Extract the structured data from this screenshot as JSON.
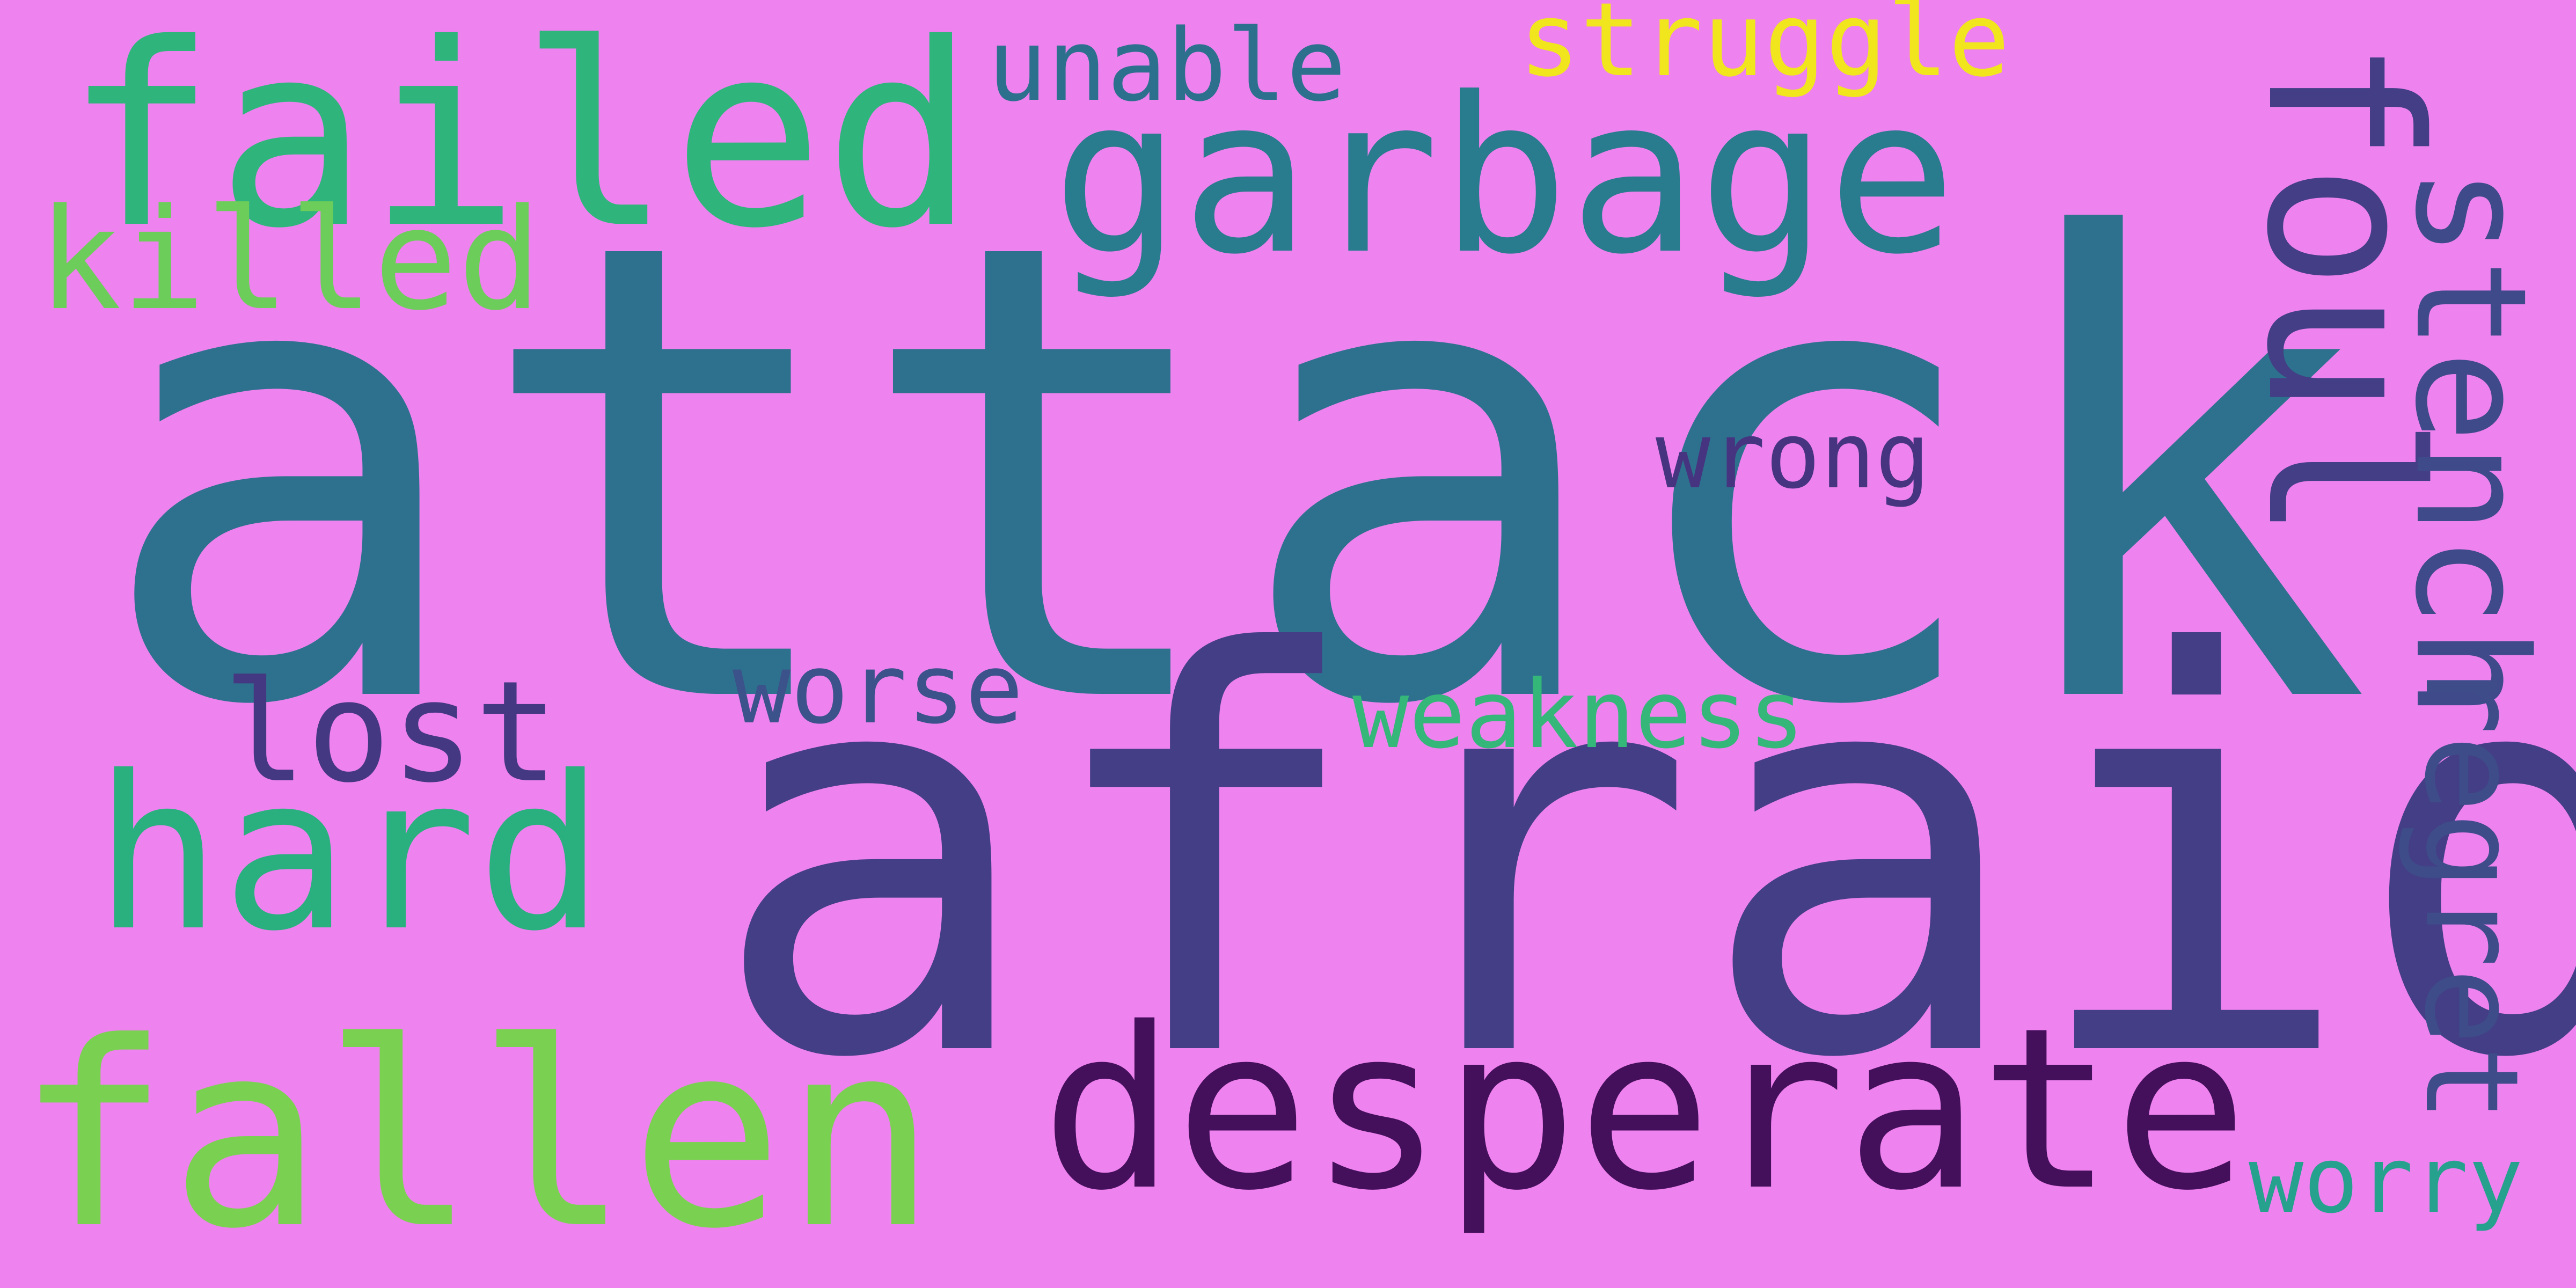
{
  "background_color": "#ee82ee",
  "words": {
    "attack": {
      "text": "attack",
      "color": "#2e718e"
    },
    "afraid": {
      "text": "afraid",
      "color": "#433e85"
    },
    "garbage": {
      "text": "garbage",
      "color": "#297b8e"
    },
    "failed": {
      "text": "failed",
      "color": "#2fb47c"
    },
    "fallen": {
      "text": "fallen",
      "color": "#7ad151"
    },
    "desperate": {
      "text": "desperate",
      "color": "#440f5b"
    },
    "hard": {
      "text": "hard",
      "color": "#2ab07f"
    },
    "killed": {
      "text": "killed",
      "color": "#6ccd5a"
    },
    "lost": {
      "text": "lost",
      "color": "#453882"
    },
    "worse": {
      "text": "worse",
      "color": "#3b528b"
    },
    "unable": {
      "text": "unable",
      "color": "#2d708e"
    },
    "struggle": {
      "text": "struggle",
      "color": "#f1e51d"
    },
    "wrong": {
      "text": "wrong",
      "color": "#463480"
    },
    "weakness": {
      "text": "weakness",
      "color": "#35b779"
    },
    "worry": {
      "text": "worry",
      "color": "#25a18e"
    },
    "foul": {
      "text": "foul",
      "color": "#433e85"
    },
    "stench": {
      "text": "stench",
      "color": "#3e4a89"
    },
    "regret": {
      "text": "regret",
      "color": "#3e4c8a"
    }
  }
}
